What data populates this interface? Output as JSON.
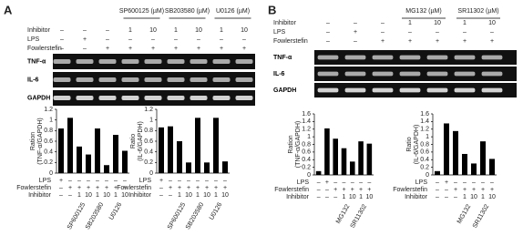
{
  "panels": [
    {
      "letter": "A",
      "headers": [
        "SP600125 (µM)",
        "SB203580 (µM)",
        "U0126 (µM)"
      ],
      "rows": [
        {
          "label": "Inhibitor",
          "values": [
            "–",
            "–",
            "–",
            "1",
            "10",
            "1",
            "10",
            "1",
            "10"
          ]
        },
        {
          "label": "LPS",
          "values": [
            "–",
            "+",
            "–",
            "–",
            "–",
            "–",
            "–",
            "–",
            "–"
          ]
        },
        {
          "label": "Fowlerstefin",
          "values": [
            "–",
            "–",
            "+",
            "+",
            "+",
            "+",
            "+",
            "+",
            "+"
          ]
        }
      ],
      "bands": [
        "TNF-α",
        "IL-6",
        "GAPDH"
      ]
    },
    {
      "letter": "B",
      "headers": [
        "MG132 (µM)",
        "SR11302 (µM)"
      ],
      "rows": [
        {
          "label": "Inhibitor",
          "values": [
            "–",
            "–",
            "–",
            "1",
            "10",
            "1",
            "10"
          ]
        },
        {
          "label": "LPS",
          "values": [
            "–",
            "+",
            "–",
            "–",
            "–",
            "–",
            "–"
          ]
        },
        {
          "label": "Fowlerstefin",
          "values": [
            "–",
            "–",
            "+",
            "+",
            "+",
            "+",
            "+"
          ]
        }
      ],
      "bands": [
        "TNF-α",
        "IL-6",
        "GAPDH"
      ]
    }
  ],
  "chart_data": [
    {
      "type": "bar",
      "ylabel": [
        "Ration",
        "(TNF-α/GAPDH)"
      ],
      "values": [
        0.84,
        1.04,
        0.5,
        0.35,
        0.84,
        0.15,
        0.72,
        0.42
      ],
      "color": "#000000",
      "ylim": [
        0,
        1.2
      ],
      "yticks": [
        0,
        0.2,
        0.4,
        0.6,
        0.8,
        1,
        1.2
      ],
      "rows": [
        {
          "label": "LPS",
          "values": [
            "+",
            "–",
            "–",
            "–",
            "–",
            "–",
            "–",
            "–"
          ]
        },
        {
          "label": "Fowlerstefin",
          "values": [
            "–",
            "+",
            "+",
            "+",
            "+",
            "+",
            "+",
            "+"
          ]
        },
        {
          "label": "Inhibitor",
          "values": [
            "–",
            "–",
            "1",
            "10",
            "1",
            "10",
            "1",
            "10"
          ]
        }
      ],
      "groups": [
        "SP600125",
        "SB203580",
        "U0126"
      ]
    },
    {
      "type": "bar",
      "ylabel": [
        "Ratio",
        "(IL-6/GAPDH)"
      ],
      "values": [
        0.86,
        0.88,
        0.6,
        0.2,
        1.04,
        0.2,
        1.04,
        0.22
      ],
      "color": "#000000",
      "ylim": [
        0,
        1.2
      ],
      "yticks": [
        0,
        0.2,
        0.4,
        0.6,
        0.8,
        1,
        1.2
      ],
      "rows": [
        {
          "label": "LPS",
          "values": [
            "+",
            "–",
            "–",
            "–",
            "–",
            "–",
            "–",
            "–"
          ]
        },
        {
          "label": "Fowlerstefin",
          "values": [
            "–",
            "+",
            "+",
            "+",
            "+",
            "+",
            "+",
            "+"
          ]
        },
        {
          "label": "Inhibitor",
          "values": [
            "–",
            "–",
            "1",
            "10",
            "1",
            "10",
            "1",
            "10"
          ]
        }
      ],
      "groups": [
        "SP600125",
        "SB203580",
        "U0126"
      ]
    },
    {
      "type": "bar",
      "ylabel": [
        "Ration",
        "(TNF-α/GAPDH)"
      ],
      "values": [
        0.1,
        1.22,
        0.95,
        0.7,
        0.35,
        0.88,
        0.82
      ],
      "color": "#000000",
      "ylim": [
        0,
        1.6
      ],
      "yticks": [
        0,
        0.2,
        0.4,
        0.6,
        0.8,
        1,
        1.2,
        1.4,
        1.6
      ],
      "rows": [
        {
          "label": "LPS",
          "values": [
            "–",
            "+",
            "–",
            "–",
            "–",
            "–",
            "–"
          ]
        },
        {
          "label": "Fowlerstefin",
          "values": [
            "–",
            "–",
            "+",
            "+",
            "+",
            "+",
            "+"
          ]
        },
        {
          "label": "Inhibitor",
          "values": [
            "–",
            "–",
            "–",
            "1",
            "10",
            "1",
            "10"
          ]
        }
      ],
      "groups": [
        "MG132",
        "SR11302"
      ]
    },
    {
      "type": "bar",
      "ylabel": [
        "Ratio",
        "(IL-6/GAPDH)"
      ],
      "values": [
        0.1,
        1.35,
        1.15,
        0.55,
        0.3,
        0.88,
        0.42
      ],
      "color": "#000000",
      "ylim": [
        0,
        1.6
      ],
      "yticks": [
        0,
        0.2,
        0.4,
        0.6,
        0.8,
        1,
        1.2,
        1.4,
        1.6
      ],
      "rows": [
        {
          "label": "LPS",
          "values": [
            "–",
            "+",
            "–",
            "–",
            "–",
            "–",
            "–"
          ]
        },
        {
          "label": "Fowlerstefin",
          "values": [
            "–",
            "–",
            "+",
            "+",
            "+",
            "+",
            "+"
          ]
        },
        {
          "label": "Inhibitor",
          "values": [
            "–",
            "–",
            "–",
            "1",
            "10",
            "1",
            "10"
          ]
        }
      ],
      "groups": [
        "MG132",
        "SR11302"
      ]
    }
  ]
}
